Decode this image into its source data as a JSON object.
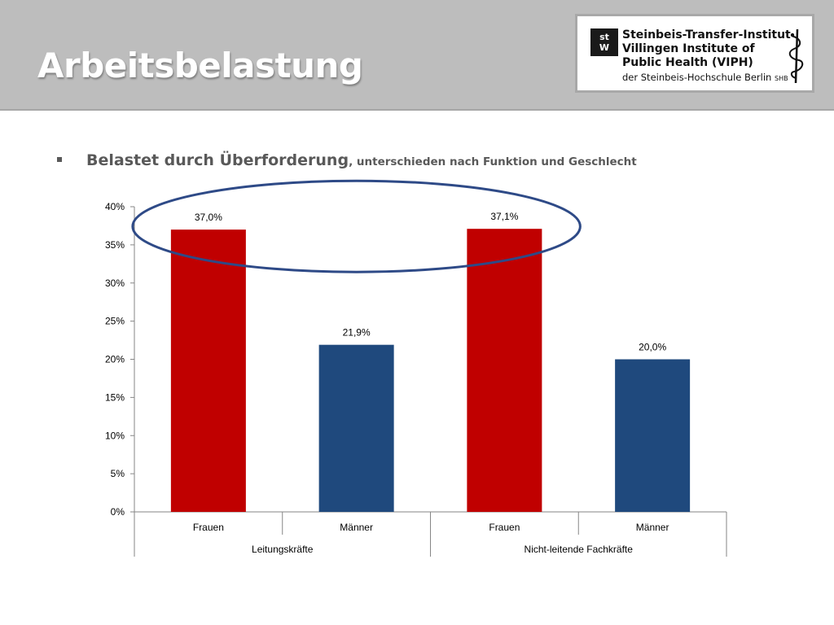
{
  "slide": {
    "title": "Arbeitsbelastung",
    "bullet_main": "Belastet durch Überforderung",
    "bullet_rest": ", unterschieden nach Funktion und Geschlecht"
  },
  "logo": {
    "mark_top": "st",
    "mark_bottom": "W",
    "line1": "Steinbeis-Transfer-Institut",
    "line2": "Villingen Institute of",
    "line3": "Public Health (VIPH)",
    "line4": "der Steinbeis-Hochschule Berlin",
    "line4_suffix": "SHB",
    "icon": "staff-of-asclepius"
  },
  "chart_data": {
    "type": "bar",
    "groups": [
      {
        "label": "Leitungskräfte",
        "categories": [
          "Frauen",
          "Männer"
        ]
      },
      {
        "label": "Nicht-leitende Fachkräfte",
        "categories": [
          "Frauen",
          "Männer"
        ]
      }
    ],
    "categories": [
      "Frauen",
      "Männer",
      "Frauen",
      "Männer"
    ],
    "values": [
      37.0,
      21.9,
      37.1,
      20.0
    ],
    "data_labels": [
      "37,0%",
      "21,9%",
      "37,1%",
      "20,0%"
    ],
    "bar_colors": [
      "#c00000",
      "#1f497d",
      "#c00000",
      "#1f497d"
    ],
    "y_ticks": [
      0,
      5,
      10,
      15,
      20,
      25,
      30,
      35,
      40
    ],
    "y_tick_labels": [
      "0%",
      "5%",
      "10%",
      "15%",
      "20%",
      "25%",
      "30%",
      "35%",
      "40%"
    ],
    "ylim": [
      0,
      40
    ],
    "grid": false,
    "legend": "none",
    "annotation": {
      "shape": "ellipse",
      "highlights": "Frauen bars (37,0% and 37,1%)",
      "color": "#2e4a87"
    }
  }
}
